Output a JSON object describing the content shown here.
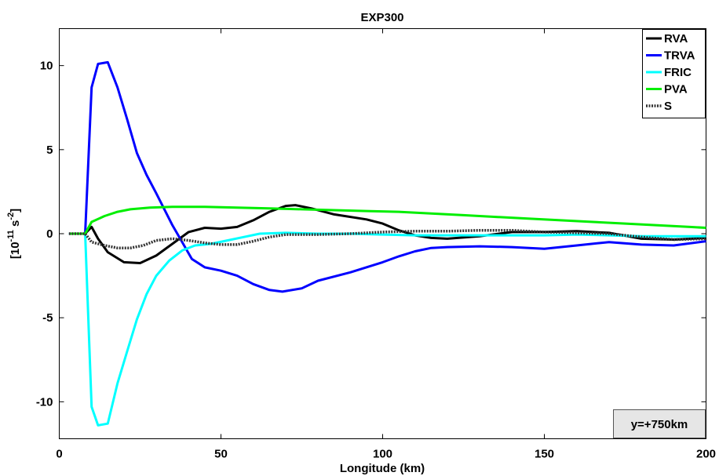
{
  "chart_data": {
    "type": "line",
    "title": "EXP300",
    "xlabel": "Longitude (km)",
    "ylabel": {
      "base": "[10",
      "exp1": "-11",
      "mid": " s",
      "exp2": "-2",
      "end": "]"
    },
    "xlim": [
      0,
      200
    ],
    "ylim": [
      -12.2,
      12.2
    ],
    "xticks": [
      0,
      50,
      100,
      150,
      200
    ],
    "xtick_labels": [
      "0",
      "50",
      "100",
      "150",
      "200"
    ],
    "yticks": [
      -10,
      -5,
      0,
      5,
      10
    ],
    "ytick_labels": [
      "-10",
      "-5",
      "0",
      "5",
      "10"
    ],
    "grid": false,
    "legend_position": "top-right",
    "annotation": "y=+750km",
    "series": [
      {
        "name": "RVA",
        "color": "#000000",
        "style": "solid",
        "points": [
          [
            3,
            0
          ],
          [
            8,
            0
          ],
          [
            10,
            0.4
          ],
          [
            12,
            -0.3
          ],
          [
            15,
            -1.1
          ],
          [
            20,
            -1.7
          ],
          [
            25,
            -1.75
          ],
          [
            30,
            -1.3
          ],
          [
            35,
            -0.6
          ],
          [
            40,
            0.1
          ],
          [
            45,
            0.35
          ],
          [
            50,
            0.3
          ],
          [
            55,
            0.4
          ],
          [
            60,
            0.8
          ],
          [
            65,
            1.3
          ],
          [
            70,
            1.65
          ],
          [
            73,
            1.7
          ],
          [
            78,
            1.5
          ],
          [
            85,
            1.15
          ],
          [
            95,
            0.85
          ],
          [
            100,
            0.6
          ],
          [
            105,
            0.2
          ],
          [
            110,
            -0.1
          ],
          [
            115,
            -0.25
          ],
          [
            120,
            -0.3
          ],
          [
            130,
            -0.15
          ],
          [
            140,
            0.1
          ],
          [
            150,
            0.1
          ],
          [
            160,
            0.15
          ],
          [
            170,
            0.05
          ],
          [
            180,
            -0.3
          ],
          [
            190,
            -0.35
          ],
          [
            200,
            -0.25
          ]
        ]
      },
      {
        "name": "TRVA",
        "color": "#0000ff",
        "style": "solid",
        "points": [
          [
            3,
            0
          ],
          [
            8,
            0
          ],
          [
            10,
            8.7
          ],
          [
            12,
            10.1
          ],
          [
            15,
            10.2
          ],
          [
            18,
            8.7
          ],
          [
            21,
            6.8
          ],
          [
            24,
            4.8
          ],
          [
            27,
            3.5
          ],
          [
            30,
            2.4
          ],
          [
            35,
            0.5
          ],
          [
            38,
            -0.5
          ],
          [
            41,
            -1.5
          ],
          [
            45,
            -2
          ],
          [
            50,
            -2.2
          ],
          [
            55,
            -2.5
          ],
          [
            60,
            -3
          ],
          [
            65,
            -3.35
          ],
          [
            69,
            -3.45
          ],
          [
            75,
            -3.25
          ],
          [
            80,
            -2.8
          ],
          [
            90,
            -2.3
          ],
          [
            100,
            -1.7
          ],
          [
            105,
            -1.35
          ],
          [
            110,
            -1.05
          ],
          [
            115,
            -0.85
          ],
          [
            120,
            -0.8
          ],
          [
            130,
            -0.75
          ],
          [
            140,
            -0.8
          ],
          [
            150,
            -0.9
          ],
          [
            160,
            -0.7
          ],
          [
            170,
            -0.5
          ],
          [
            180,
            -0.65
          ],
          [
            190,
            -0.7
          ],
          [
            200,
            -0.45
          ]
        ]
      },
      {
        "name": "FRIC",
        "color": "#00ffff",
        "style": "solid",
        "points": [
          [
            3,
            0
          ],
          [
            8,
            0
          ],
          [
            10,
            -10.3
          ],
          [
            12,
            -11.4
          ],
          [
            15,
            -11.3
          ],
          [
            18,
            -8.9
          ],
          [
            21,
            -7
          ],
          [
            24,
            -5.1
          ],
          [
            27,
            -3.6
          ],
          [
            30,
            -2.5
          ],
          [
            34,
            -1.6
          ],
          [
            38,
            -1
          ],
          [
            42,
            -0.7
          ],
          [
            47,
            -0.6
          ],
          [
            52,
            -0.4
          ],
          [
            57,
            -0.2
          ],
          [
            62,
            0
          ],
          [
            70,
            0.05
          ],
          [
            80,
            0
          ],
          [
            90,
            0
          ],
          [
            100,
            -0.05
          ],
          [
            110,
            -0.1
          ],
          [
            120,
            -0.1
          ],
          [
            130,
            -0.1
          ],
          [
            140,
            -0.1
          ],
          [
            150,
            -0.1
          ],
          [
            160,
            -0.05
          ],
          [
            170,
            -0.1
          ],
          [
            180,
            -0.15
          ],
          [
            190,
            -0.15
          ],
          [
            200,
            -0.15
          ]
        ]
      },
      {
        "name": "PVA",
        "color": "#00ee00",
        "style": "solid",
        "points": [
          [
            3,
            0
          ],
          [
            8,
            0
          ],
          [
            10,
            0.7
          ],
          [
            14,
            1.05
          ],
          [
            18,
            1.3
          ],
          [
            22,
            1.45
          ],
          [
            28,
            1.55
          ],
          [
            35,
            1.6
          ],
          [
            45,
            1.6
          ],
          [
            55,
            1.55
          ],
          [
            65,
            1.5
          ],
          [
            75,
            1.45
          ],
          [
            85,
            1.4
          ],
          [
            95,
            1.35
          ],
          [
            105,
            1.3
          ],
          [
            115,
            1.2
          ],
          [
            125,
            1.1
          ],
          [
            135,
            1
          ],
          [
            145,
            0.9
          ],
          [
            155,
            0.8
          ],
          [
            165,
            0.7
          ],
          [
            175,
            0.6
          ],
          [
            185,
            0.5
          ],
          [
            195,
            0.4
          ],
          [
            200,
            0.35
          ]
        ]
      },
      {
        "name": "S",
        "color": "#333333",
        "style": "dotted",
        "points": [
          [
            3,
            0
          ],
          [
            8,
            0
          ],
          [
            10,
            -0.5
          ],
          [
            14,
            -0.7
          ],
          [
            18,
            -0.85
          ],
          [
            22,
            -0.85
          ],
          [
            26,
            -0.7
          ],
          [
            30,
            -0.4
          ],
          [
            35,
            -0.3
          ],
          [
            40,
            -0.4
          ],
          [
            45,
            -0.55
          ],
          [
            50,
            -0.65
          ],
          [
            55,
            -0.65
          ],
          [
            60,
            -0.45
          ],
          [
            65,
            -0.2
          ],
          [
            70,
            -0.05
          ],
          [
            75,
            -0.05
          ],
          [
            80,
            -0.05
          ],
          [
            90,
            0
          ],
          [
            100,
            0.1
          ],
          [
            110,
            0.15
          ],
          [
            120,
            0.15
          ],
          [
            130,
            0.2
          ],
          [
            140,
            0.2
          ],
          [
            150,
            0.1
          ],
          [
            160,
            0.05
          ],
          [
            170,
            0
          ],
          [
            180,
            -0.2
          ],
          [
            190,
            -0.35
          ],
          [
            200,
            -0.3
          ]
        ]
      }
    ]
  }
}
